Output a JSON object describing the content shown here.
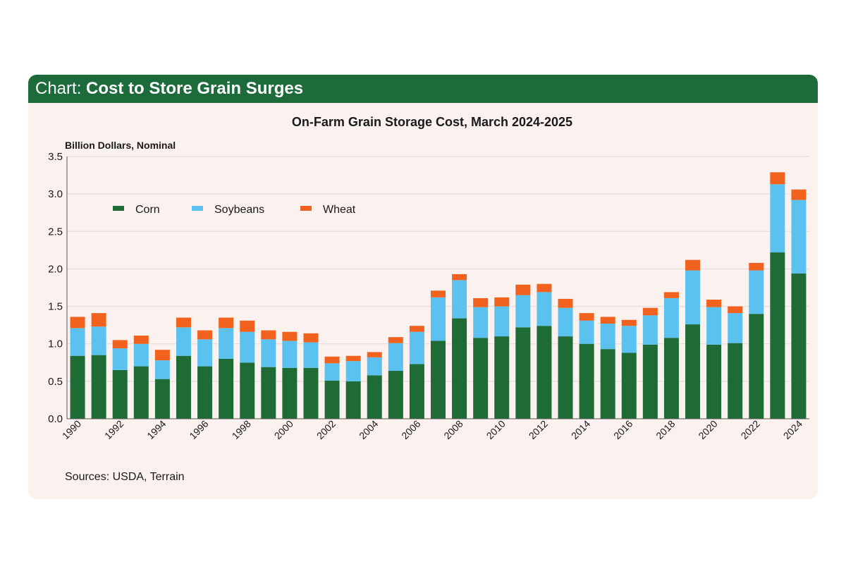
{
  "header": {
    "lead": "Chart:",
    "title": "Cost to Store Grain Surges"
  },
  "sources": "Sources: USDA, Terrain",
  "colors": {
    "header_bg": "#1d6b3a",
    "card_bg": "#fbf1ee",
    "corn": "#1e6b35",
    "soybeans": "#5bc2f0",
    "wheat": "#f2621f"
  },
  "chart_data": {
    "type": "bar",
    "stacked": true,
    "title": "On-Farm Grain Storage Cost, March 2024-2025",
    "ylabel": "Billion Dollars, Nominal",
    "xlabel": "",
    "ylim": [
      0,
      3.5
    ],
    "yticks": [
      "0.0",
      "0.5",
      "1.0",
      "1.5",
      "2.0",
      "2.5",
      "3.0",
      "3.5"
    ],
    "grid": true,
    "legend_position": "top-left",
    "categories": [
      "1990",
      "1991",
      "1992",
      "1993",
      "1994",
      "1995",
      "1996",
      "1997",
      "1998",
      "1999",
      "2000",
      "2001",
      "2002",
      "2003",
      "2004",
      "2005",
      "2006",
      "2007",
      "2008",
      "2009",
      "2010",
      "2011",
      "2012",
      "2013",
      "2014",
      "2015",
      "2016",
      "2017",
      "2018",
      "2019",
      "2020",
      "2021",
      "2022",
      "2023",
      "2024"
    ],
    "xtick_labels": [
      "1990",
      "1992",
      "1994",
      "1996",
      "1998",
      "2000",
      "2002",
      "2004",
      "2006",
      "2008",
      "2010",
      "2012",
      "2014",
      "2016",
      "2018",
      "2020",
      "2022",
      "2024"
    ],
    "series": [
      {
        "name": "Corn",
        "color": "#1e6b35",
        "values": [
          0.84,
          0.85,
          0.65,
          0.7,
          0.53,
          0.84,
          0.7,
          0.8,
          0.75,
          0.69,
          0.68,
          0.68,
          0.51,
          0.5,
          0.58,
          0.64,
          0.73,
          1.04,
          1.34,
          1.08,
          1.1,
          1.22,
          1.24,
          1.1,
          1.0,
          0.93,
          0.88,
          0.99,
          1.08,
          1.26,
          0.99,
          1.01,
          1.4,
          2.22,
          1.94
        ]
      },
      {
        "name": "Soybeans",
        "color": "#5bc2f0",
        "values": [
          0.37,
          0.38,
          0.29,
          0.3,
          0.25,
          0.38,
          0.36,
          0.41,
          0.41,
          0.37,
          0.36,
          0.34,
          0.23,
          0.27,
          0.24,
          0.37,
          0.43,
          0.58,
          0.51,
          0.41,
          0.4,
          0.43,
          0.45,
          0.38,
          0.31,
          0.34,
          0.36,
          0.39,
          0.53,
          0.72,
          0.5,
          0.4,
          0.58,
          0.91,
          0.98
        ]
      },
      {
        "name": "Wheat",
        "color": "#f2621f",
        "values": [
          0.15,
          0.18,
          0.11,
          0.11,
          0.14,
          0.13,
          0.12,
          0.14,
          0.15,
          0.12,
          0.12,
          0.12,
          0.09,
          0.07,
          0.07,
          0.08,
          0.08,
          0.09,
          0.08,
          0.12,
          0.12,
          0.14,
          0.11,
          0.12,
          0.1,
          0.09,
          0.08,
          0.1,
          0.08,
          0.14,
          0.1,
          0.09,
          0.1,
          0.16,
          0.14
        ]
      }
    ]
  }
}
